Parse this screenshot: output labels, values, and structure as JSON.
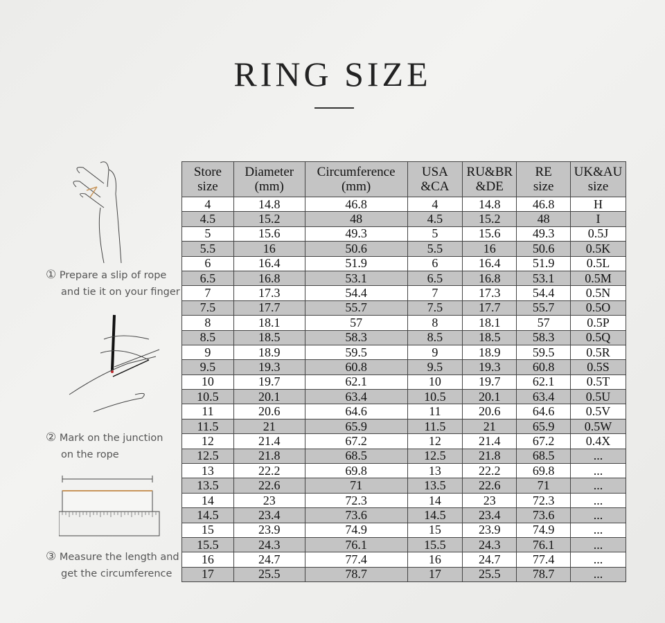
{
  "title": "RING SIZE",
  "headers": [
    [
      "Store",
      "size"
    ],
    [
      "Diameter",
      "(mm)"
    ],
    [
      "Circumference",
      "(mm)"
    ],
    [
      "USA",
      "&CA"
    ],
    [
      "RU&BR",
      "&DE"
    ],
    [
      "RE",
      "size"
    ],
    [
      "UK&AU",
      "size"
    ]
  ],
  "rows": [
    [
      "4",
      "14.8",
      "46.8",
      "4",
      "14.8",
      "46.8",
      "H"
    ],
    [
      "4.5",
      "15.2",
      "48",
      "4.5",
      "15.2",
      "48",
      "I"
    ],
    [
      "5",
      "15.6",
      "49.3",
      "5",
      "15.6",
      "49.3",
      "0.5J"
    ],
    [
      "5.5",
      "16",
      "50.6",
      "5.5",
      "16",
      "50.6",
      "0.5K"
    ],
    [
      "6",
      "16.4",
      "51.9",
      "6",
      "16.4",
      "51.9",
      "0.5L"
    ],
    [
      "6.5",
      "16.8",
      "53.1",
      "6.5",
      "16.8",
      "53.1",
      "0.5M"
    ],
    [
      "7",
      "17.3",
      "54.4",
      "7",
      "17.3",
      "54.4",
      "0.5N"
    ],
    [
      "7.5",
      "17.7",
      "55.7",
      "7.5",
      "17.7",
      "55.7",
      "0.5O"
    ],
    [
      "8",
      "18.1",
      "57",
      "8",
      "18.1",
      "57",
      "0.5P"
    ],
    [
      "8.5",
      "18.5",
      "58.3",
      "8.5",
      "18.5",
      "58.3",
      "0.5Q"
    ],
    [
      "9",
      "18.9",
      "59.5",
      "9",
      "18.9",
      "59.5",
      "0.5R"
    ],
    [
      "9.5",
      "19.3",
      "60.8",
      "9.5",
      "19.3",
      "60.8",
      "0.5S"
    ],
    [
      "10",
      "19.7",
      "62.1",
      "10",
      "19.7",
      "62.1",
      "0.5T"
    ],
    [
      "10.5",
      "20.1",
      "63.4",
      "10.5",
      "20.1",
      "63.4",
      "0.5U"
    ],
    [
      "11",
      "20.6",
      "64.6",
      "11",
      "20.6",
      "64.6",
      "0.5V"
    ],
    [
      "11.5",
      "21",
      "65.9",
      "11.5",
      "21",
      "65.9",
      "0.5W"
    ],
    [
      "12",
      "21.4",
      "67.2",
      "12",
      "21.4",
      "67.2",
      "0.4X"
    ],
    [
      "12.5",
      "21.8",
      "68.5",
      "12.5",
      "21.8",
      "68.5",
      "..."
    ],
    [
      "13",
      "22.2",
      "69.8",
      "13",
      "22.2",
      "69.8",
      "..."
    ],
    [
      "13.5",
      "22.6",
      "71",
      "13.5",
      "22.6",
      "71",
      "..."
    ],
    [
      "14",
      "23",
      "72.3",
      "14",
      "23",
      "72.3",
      "..."
    ],
    [
      "14.5",
      "23.4",
      "73.6",
      "14.5",
      "23.4",
      "73.6",
      "..."
    ],
    [
      "15",
      "23.9",
      "74.9",
      "15",
      "23.9",
      "74.9",
      "..."
    ],
    [
      "15.5",
      "24.3",
      "76.1",
      "15.5",
      "24.3",
      "76.1",
      "..."
    ],
    [
      "16",
      "24.7",
      "77.4",
      "16",
      "24.7",
      "77.4",
      "..."
    ],
    [
      "17",
      "25.5",
      "78.7",
      "17",
      "25.5",
      "78.7",
      "..."
    ]
  ],
  "steps": [
    {
      "num": "①",
      "lines": [
        "Prepare a slip of rope",
        "and tie it on your finger"
      ]
    },
    {
      "num": "②",
      "lines": [
        "Mark on the junction",
        "on the rope"
      ]
    },
    {
      "num": "③",
      "lines": [
        "Measure the length and",
        "get the circumference"
      ]
    }
  ],
  "colors": {
    "header_bg": "#c4c4c4",
    "rope": "#c8955a",
    "mark": "#c0282d"
  }
}
